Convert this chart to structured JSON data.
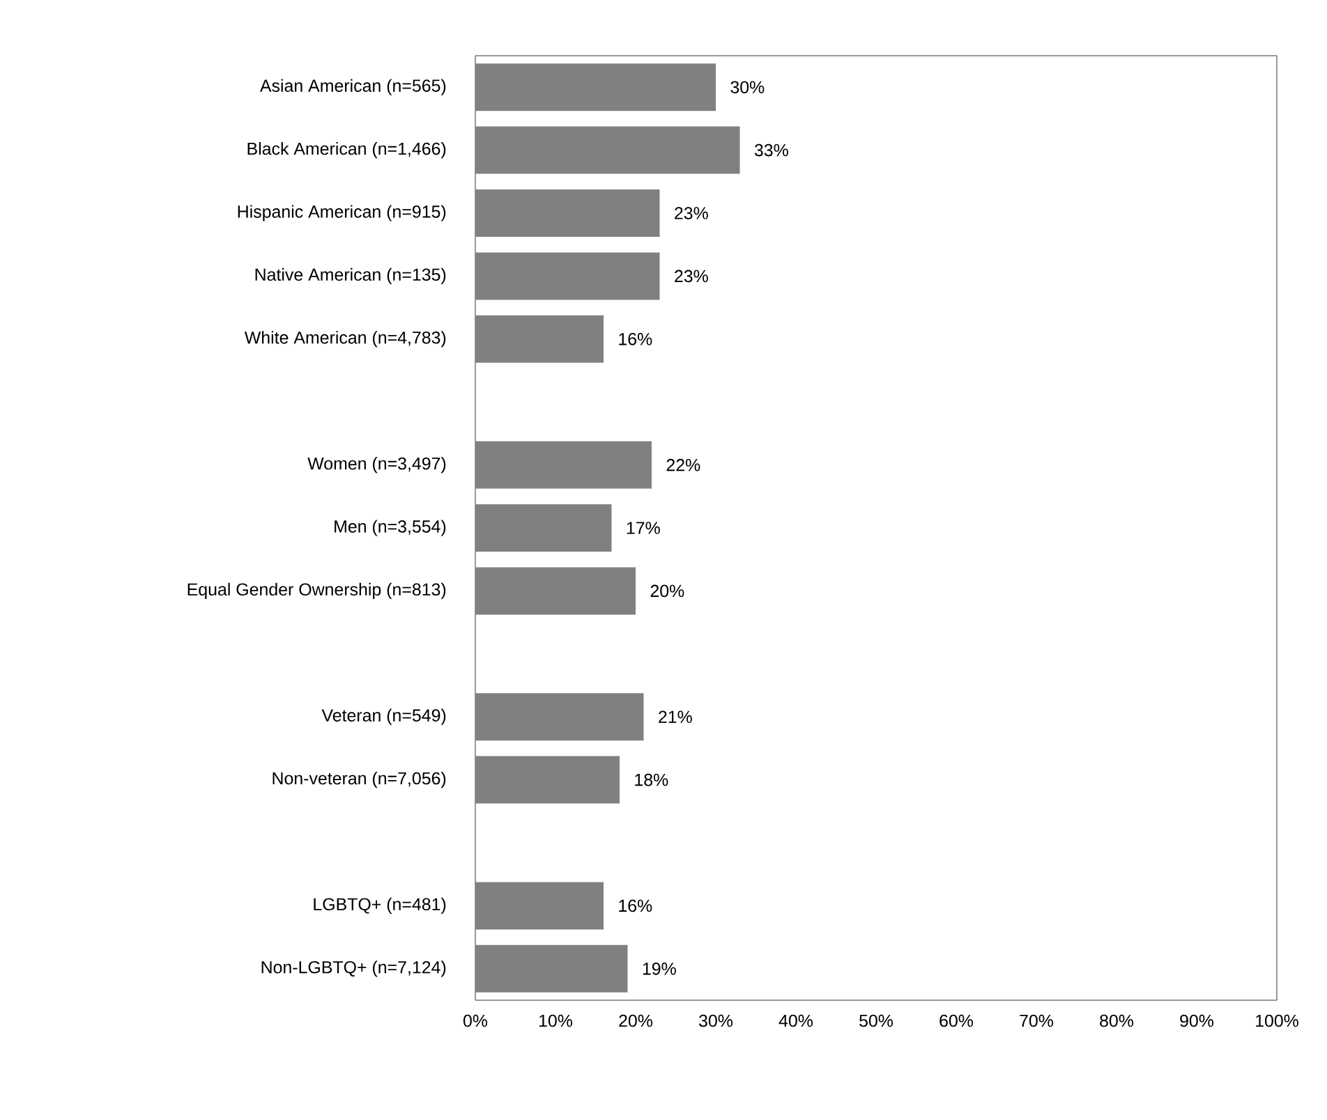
{
  "chart_data": {
    "type": "bar",
    "orientation": "horizontal",
    "categories": [
      "Asian American (n=565)",
      "Black American (n=1,466)",
      "Hispanic American (n=915)",
      "Native American (n=135)",
      "White American (n=4,783)",
      null,
      "Women (n=3,497)",
      "Men (n=3,554)",
      "Equal Gender Ownership (n=813)",
      null,
      "Veteran (n=549)",
      "Non-veteran (n=7,056)",
      null,
      "LGBTQ+ (n=481)",
      "Non-LGBTQ+ (n=7,124)"
    ],
    "values": [
      30,
      33,
      23,
      23,
      16,
      null,
      22,
      17,
      20,
      null,
      21,
      18,
      null,
      16,
      19
    ],
    "value_labels": [
      "30%",
      "33%",
      "23%",
      "23%",
      "16%",
      null,
      "22%",
      "17%",
      "20%",
      null,
      "21%",
      "18%",
      null,
      "16%",
      "19%"
    ],
    "color": "#808080",
    "xlim": [
      0,
      100
    ],
    "xticks": [
      {
        "value": 0,
        "label": "0%"
      },
      {
        "value": 10,
        "label": "10%"
      },
      {
        "value": 20,
        "label": "20%"
      },
      {
        "value": 30,
        "label": "30%"
      },
      {
        "value": 40,
        "label": "40%"
      },
      {
        "value": 50,
        "label": "50%"
      },
      {
        "value": 60,
        "label": "60%"
      },
      {
        "value": 70,
        "label": "70%"
      },
      {
        "value": 80,
        "label": "80%"
      },
      {
        "value": 90,
        "label": "90%"
      },
      {
        "value": 100,
        "label": "100%"
      }
    ]
  }
}
